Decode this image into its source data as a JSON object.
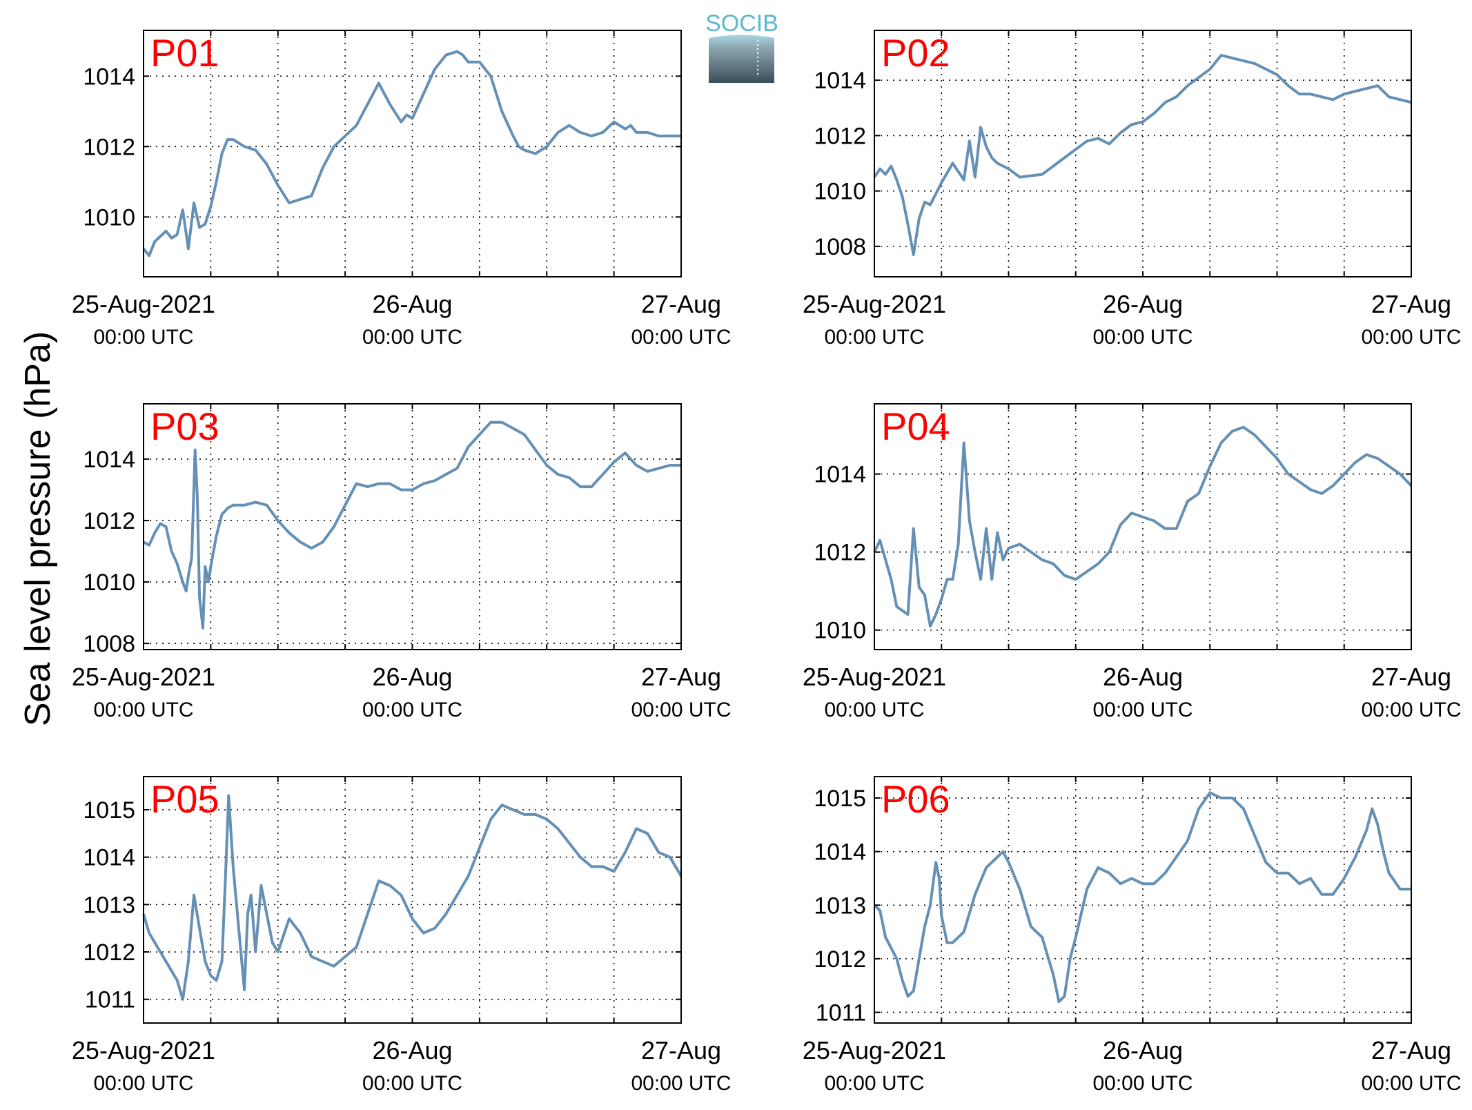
{
  "ylabel": "Sea level pressure (hPa)",
  "logo": {
    "text": "SOCIB"
  },
  "colors": {
    "series": "#6590b5",
    "panel_label": "#ff0000",
    "axis": "#000000",
    "grid": "#000000"
  },
  "chart_data": [
    {
      "type": "line",
      "name": "P01",
      "xlim_hours": [
        0,
        48
      ],
      "x_ticks": [
        {
          "h": 0,
          "date": "25-Aug-2021",
          "time": "00:00 UTC"
        },
        {
          "h": 24,
          "date": "26-Aug",
          "time": "00:00 UTC"
        },
        {
          "h": 48,
          "date": "27-Aug",
          "time": "00:00 UTC"
        }
      ],
      "ylim": [
        1008.3,
        1015.3
      ],
      "yticks": [
        1010,
        1012,
        1014
      ],
      "x": [
        0,
        0.5,
        1,
        2,
        2.5,
        3,
        3.5,
        4,
        4.5,
        5,
        5.5,
        6,
        6.5,
        7,
        7.5,
        8,
        9,
        10,
        11,
        12,
        13,
        15,
        16,
        17,
        19,
        20,
        21,
        22,
        23,
        23.5,
        24,
        25,
        26,
        27,
        28,
        28.5,
        29,
        30,
        31,
        32,
        33,
        33.5,
        34,
        35,
        36,
        37,
        38,
        39,
        40,
        41,
        42,
        43,
        43.5,
        44,
        45,
        46,
        47,
        48
      ],
      "y": [
        1009.1,
        1008.9,
        1009.3,
        1009.6,
        1009.4,
        1009.5,
        1010.2,
        1009.1,
        1010.4,
        1009.7,
        1009.8,
        1010.3,
        1011.0,
        1011.8,
        1012.2,
        1012.2,
        1012.0,
        1011.9,
        1011.5,
        1010.9,
        1010.4,
        1010.6,
        1011.4,
        1012.0,
        1012.6,
        1013.2,
        1013.8,
        1013.2,
        1012.7,
        1012.9,
        1012.8,
        1013.5,
        1014.2,
        1014.6,
        1014.7,
        1014.6,
        1014.4,
        1014.4,
        1014.0,
        1013.0,
        1012.3,
        1012.0,
        1011.9,
        1011.8,
        1012.0,
        1012.4,
        1012.6,
        1012.4,
        1012.3,
        1012.4,
        1012.7,
        1012.5,
        1012.6,
        1012.4,
        1012.4,
        1012.3,
        1012.3,
        1012.3
      ]
    },
    {
      "type": "line",
      "name": "P02",
      "xlim_hours": [
        0,
        48
      ],
      "x_ticks": [
        {
          "h": 0,
          "date": "25-Aug-2021",
          "time": "00:00 UTC"
        },
        {
          "h": 24,
          "date": "26-Aug",
          "time": "00:00 UTC"
        },
        {
          "h": 48,
          "date": "27-Aug",
          "time": "00:00 UTC"
        }
      ],
      "ylim": [
        1006.9,
        1015.8
      ],
      "yticks": [
        1008,
        1010,
        1012,
        1014
      ],
      "x": [
        0,
        0.5,
        1,
        1.5,
        2,
        2.5,
        3,
        3.5,
        4,
        4.5,
        5,
        6,
        7,
        8,
        8.5,
        9,
        9.5,
        10,
        10.5,
        11,
        12,
        13,
        15,
        16,
        17,
        19,
        20,
        21,
        22,
        23,
        24,
        25,
        26,
        27,
        28,
        30,
        31,
        32,
        34,
        36,
        37,
        38,
        39,
        40,
        41,
        42,
        43,
        44,
        45,
        46,
        47,
        48
      ],
      "y": [
        1010.5,
        1010.8,
        1010.6,
        1010.9,
        1010.4,
        1009.8,
        1008.8,
        1007.7,
        1009.0,
        1009.6,
        1009.5,
        1010.3,
        1011.0,
        1010.4,
        1011.8,
        1010.5,
        1012.3,
        1011.6,
        1011.2,
        1011.0,
        1010.8,
        1010.5,
        1010.6,
        1010.9,
        1011.2,
        1011.8,
        1011.9,
        1011.7,
        1012.1,
        1012.4,
        1012.5,
        1012.8,
        1013.2,
        1013.4,
        1013.8,
        1014.4,
        1014.9,
        1014.8,
        1014.6,
        1014.2,
        1013.8,
        1013.5,
        1013.5,
        1013.4,
        1013.3,
        1013.5,
        1013.6,
        1013.7,
        1013.8,
        1013.4,
        1013.3,
        1013.2
      ]
    },
    {
      "type": "line",
      "name": "P03",
      "xlim_hours": [
        0,
        48
      ],
      "x_ticks": [
        {
          "h": 0,
          "date": "25-Aug-2021",
          "time": "00:00 UTC"
        },
        {
          "h": 24,
          "date": "26-Aug",
          "time": "00:00 UTC"
        },
        {
          "h": 48,
          "date": "27-Aug",
          "time": "00:00 UTC"
        }
      ],
      "ylim": [
        1007.8,
        1015.8
      ],
      "yticks": [
        1008,
        1010,
        1012,
        1014
      ],
      "x": [
        0,
        0.5,
        1,
        1.5,
        2,
        2.5,
        3,
        3.5,
        3.8,
        4,
        4.3,
        4.6,
        4.8,
        5,
        5.3,
        5.5,
        5.8,
        6,
        6.5,
        7,
        7.5,
        8,
        9,
        10,
        11,
        12,
        13,
        14,
        15,
        16,
        17,
        18,
        19,
        20,
        21,
        22,
        23,
        24,
        25,
        26,
        27,
        28,
        29,
        30,
        31,
        32,
        33,
        34,
        35,
        36,
        37,
        38,
        39,
        40,
        41,
        42,
        43,
        44,
        45,
        46,
        47,
        48
      ],
      "y": [
        1011.3,
        1011.2,
        1011.6,
        1011.9,
        1011.8,
        1011.0,
        1010.6,
        1010.0,
        1009.7,
        1010.2,
        1010.8,
        1014.3,
        1012.8,
        1009.5,
        1008.5,
        1010.5,
        1010.0,
        1010.5,
        1011.5,
        1012.2,
        1012.4,
        1012.5,
        1012.5,
        1012.6,
        1012.5,
        1012.0,
        1011.6,
        1011.3,
        1011.1,
        1011.3,
        1011.8,
        1012.5,
        1013.2,
        1013.1,
        1013.2,
        1013.2,
        1013.0,
        1013.0,
        1013.2,
        1013.3,
        1013.5,
        1013.7,
        1014.4,
        1014.8,
        1015.2,
        1015.2,
        1015.0,
        1014.8,
        1014.3,
        1013.8,
        1013.5,
        1013.4,
        1013.1,
        1013.1,
        1013.5,
        1013.9,
        1014.2,
        1013.8,
        1013.6,
        1013.7,
        1013.8,
        1013.8
      ]
    },
    {
      "type": "line",
      "name": "P04",
      "xlim_hours": [
        0,
        48
      ],
      "x_ticks": [
        {
          "h": 0,
          "date": "25-Aug-2021",
          "time": "00:00 UTC"
        },
        {
          "h": 24,
          "date": "26-Aug",
          "time": "00:00 UTC"
        },
        {
          "h": 48,
          "date": "27-Aug",
          "time": "00:00 UTC"
        }
      ],
      "ylim": [
        1009.5,
        1015.8
      ],
      "yticks": [
        1010,
        1012,
        1014
      ],
      "x": [
        0,
        0.5,
        1,
        1.5,
        2,
        2.5,
        3,
        3.5,
        4,
        4.5,
        5,
        5.5,
        6,
        6.5,
        7,
        7.5,
        8,
        8.5,
        9,
        9.5,
        10,
        10.5,
        11,
        11.5,
        12,
        13,
        14,
        15,
        16,
        17,
        18,
        19,
        20,
        21,
        22,
        23,
        24,
        25,
        26,
        27,
        28,
        29,
        30,
        31,
        32,
        33,
        34,
        35,
        36,
        37,
        38,
        39,
        40,
        41,
        42,
        43,
        44,
        45,
        46,
        47,
        48
      ],
      "y": [
        1012.0,
        1012.3,
        1011.8,
        1011.3,
        1010.6,
        1010.5,
        1010.4,
        1012.6,
        1011.1,
        1010.9,
        1010.1,
        1010.4,
        1010.8,
        1011.3,
        1011.3,
        1012.2,
        1014.8,
        1012.8,
        1012.0,
        1011.3,
        1012.6,
        1011.3,
        1012.5,
        1011.8,
        1012.1,
        1012.2,
        1012.0,
        1011.8,
        1011.7,
        1011.4,
        1011.3,
        1011.5,
        1011.7,
        1012.0,
        1012.7,
        1013.0,
        1012.9,
        1012.8,
        1012.6,
        1012.6,
        1013.3,
        1013.5,
        1014.2,
        1014.8,
        1015.1,
        1015.2,
        1015.0,
        1014.7,
        1014.4,
        1014.0,
        1013.8,
        1013.6,
        1013.5,
        1013.7,
        1014.0,
        1014.3,
        1014.5,
        1014.4,
        1014.2,
        1014.0,
        1013.7
      ]
    },
    {
      "type": "line",
      "name": "P05",
      "xlim_hours": [
        0,
        48
      ],
      "x_ticks": [
        {
          "h": 0,
          "date": "25-Aug-2021",
          "time": "00:00 UTC"
        },
        {
          "h": 24,
          "date": "26-Aug",
          "time": "00:00 UTC"
        },
        {
          "h": 48,
          "date": "27-Aug",
          "time": "00:00 UTC"
        }
      ],
      "ylim": [
        1010.5,
        1015.7
      ],
      "yticks": [
        1011,
        1012,
        1013,
        1014,
        1015
      ],
      "x": [
        0,
        0.5,
        1,
        1.5,
        2,
        2.5,
        3,
        3.5,
        4,
        4.5,
        5,
        5.5,
        6,
        6.5,
        7,
        7.3,
        7.6,
        8,
        8.5,
        9,
        9.3,
        9.6,
        10,
        10.5,
        11,
        11.5,
        12,
        13,
        14,
        15,
        16,
        17,
        18,
        19,
        20,
        21,
        22,
        23,
        24,
        25,
        26,
        27,
        28,
        29,
        30,
        31,
        32,
        33,
        34,
        35,
        36,
        37,
        38,
        39,
        40,
        41,
        42,
        43,
        44,
        45,
        46,
        47,
        48
      ],
      "y": [
        1012.8,
        1012.4,
        1012.2,
        1012.0,
        1011.8,
        1011.6,
        1011.4,
        1011.0,
        1011.8,
        1013.2,
        1012.5,
        1011.8,
        1011.5,
        1011.4,
        1011.8,
        1013.5,
        1015.3,
        1013.8,
        1012.5,
        1011.2,
        1012.8,
        1013.2,
        1012.0,
        1013.4,
        1012.8,
        1012.2,
        1012.0,
        1012.7,
        1012.4,
        1011.9,
        1011.8,
        1011.7,
        1011.9,
        1012.1,
        1012.8,
        1013.5,
        1013.4,
        1013.2,
        1012.7,
        1012.4,
        1012.5,
        1012.8,
        1013.2,
        1013.6,
        1014.2,
        1014.8,
        1015.1,
        1015.0,
        1014.9,
        1014.9,
        1014.8,
        1014.6,
        1014.3,
        1014.0,
        1013.8,
        1013.8,
        1013.7,
        1014.1,
        1014.6,
        1014.5,
        1014.1,
        1014.0,
        1013.6
      ]
    },
    {
      "type": "line",
      "name": "P06",
      "xlim_hours": [
        0,
        48
      ],
      "x_ticks": [
        {
          "h": 0,
          "date": "25-Aug-2021",
          "time": "00:00 UTC"
        },
        {
          "h": 24,
          "date": "26-Aug",
          "time": "00:00 UTC"
        },
        {
          "h": 48,
          "date": "27-Aug",
          "time": "00:00 UTC"
        }
      ],
      "ylim": [
        1010.8,
        1015.4
      ],
      "yticks": [
        1011,
        1012,
        1013,
        1014,
        1015
      ],
      "x": [
        0,
        0.5,
        1,
        1.5,
        2,
        2.5,
        3,
        3.5,
        4,
        4.5,
        5,
        5.5,
        5.8,
        6,
        6.5,
        7,
        8,
        9,
        10,
        11,
        11.5,
        12,
        13,
        14,
        15,
        16,
        16.5,
        17,
        17.5,
        18,
        19,
        20,
        21,
        22,
        23,
        24,
        25,
        26,
        27,
        28,
        29,
        30,
        31,
        32,
        33,
        34,
        35,
        36,
        37,
        38,
        39,
        40,
        41,
        42,
        43,
        44,
        44.5,
        45,
        45.5,
        46,
        47,
        48
      ],
      "y": [
        1013.0,
        1012.9,
        1012.4,
        1012.2,
        1012.0,
        1011.6,
        1011.3,
        1011.4,
        1012.0,
        1012.6,
        1013.0,
        1013.8,
        1013.5,
        1012.8,
        1012.3,
        1012.3,
        1012.5,
        1013.2,
        1013.7,
        1013.9,
        1014.0,
        1013.8,
        1013.3,
        1012.6,
        1012.4,
        1011.7,
        1011.2,
        1011.3,
        1012.0,
        1012.4,
        1013.3,
        1013.7,
        1013.6,
        1013.4,
        1013.5,
        1013.4,
        1013.4,
        1013.6,
        1013.9,
        1014.2,
        1014.8,
        1015.1,
        1015.0,
        1015.0,
        1014.8,
        1014.3,
        1013.8,
        1013.6,
        1013.6,
        1013.4,
        1013.5,
        1013.2,
        1013.2,
        1013.5,
        1013.9,
        1014.4,
        1014.8,
        1014.5,
        1014.0,
        1013.6,
        1013.3,
        1013.3
      ]
    }
  ]
}
